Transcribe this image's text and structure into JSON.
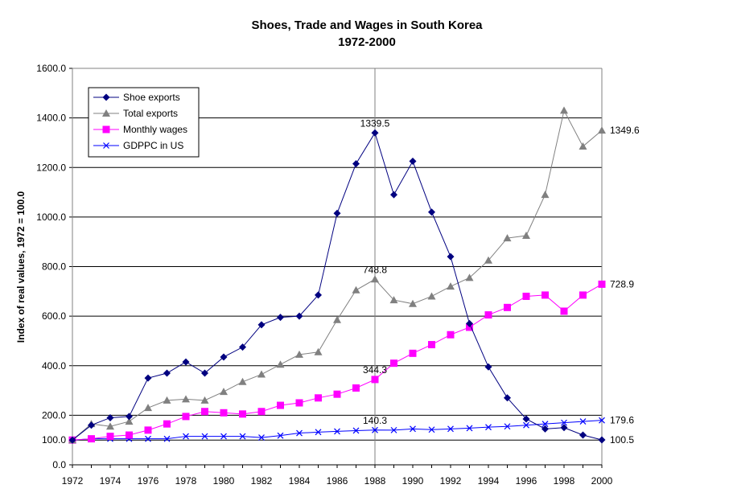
{
  "chart_data": {
    "type": "line",
    "title": "Shoes, Trade and Wages in South Korea",
    "subtitle": "1972-2000",
    "ylabel": "Index of real values, 1972 = 100.0",
    "xlabel": "",
    "ylim": [
      0,
      1600
    ],
    "xlim": [
      1972,
      2000
    ],
    "y_ticks": [
      "0.0",
      "100.0",
      "200.0",
      "400.0",
      "600.0",
      "800.0",
      "1000.0",
      "1200.0",
      "1400.0",
      "1600.0"
    ],
    "x_ticks": [
      "1972",
      "1974",
      "1976",
      "1978",
      "1980",
      "1982",
      "1984",
      "1986",
      "1988",
      "1990",
      "1992",
      "1994",
      "1996",
      "1998",
      "2000"
    ],
    "grid": "horizontal",
    "legend_position": "top-left",
    "x": [
      1972,
      1973,
      1974,
      1975,
      1976,
      1977,
      1978,
      1979,
      1980,
      1981,
      1982,
      1983,
      1984,
      1985,
      1986,
      1987,
      1988,
      1989,
      1990,
      1991,
      1992,
      1993,
      1994,
      1995,
      1996,
      1997,
      1998,
      1999,
      2000
    ],
    "series": [
      {
        "name": "Shoe exports",
        "color": "#000080",
        "marker": "diamond",
        "values": [
          100,
          160,
          190,
          195,
          350,
          370,
          415,
          370,
          435,
          475,
          565,
          595,
          600,
          685,
          1015,
          1215,
          1339.5,
          1090,
          1225,
          1020,
          840,
          570,
          395,
          270,
          185,
          145,
          150,
          120,
          100.5
        ]
      },
      {
        "name": "Total exports",
        "color": "#808080",
        "marker": "triangle",
        "values": [
          100,
          165,
          155,
          175,
          230,
          260,
          265,
          260,
          295,
          335,
          365,
          405,
          445,
          455,
          585,
          705,
          748.8,
          665,
          650,
          680,
          720,
          755,
          825,
          915,
          925,
          1090,
          1430,
          1285,
          1349.6
        ]
      },
      {
        "name": "Monthly wages",
        "color": "#ff00ff",
        "marker": "square",
        "values": [
          100,
          105,
          115,
          120,
          140,
          165,
          195,
          215,
          210,
          205,
          215,
          240,
          250,
          270,
          285,
          310,
          344.3,
          410,
          450,
          485,
          525,
          555,
          605,
          635,
          680,
          685,
          620,
          685,
          728.9
        ]
      },
      {
        "name": "GDPPC in US",
        "color": "#0000ff",
        "marker": "x",
        "values": [
          100,
          105,
          105,
          105,
          105,
          105,
          115,
          115,
          115,
          115,
          110,
          118,
          128,
          132,
          135,
          138,
          140.3,
          140,
          145,
          142,
          145,
          148,
          152,
          155,
          160,
          165,
          170,
          175,
          179.6
        ]
      }
    ],
    "annotations": [
      {
        "text": "1339.5",
        "x": 1988,
        "y": 1339.5,
        "anchor": "above"
      },
      {
        "text": "748.8",
        "x": 1988,
        "y": 748.8,
        "anchor": "above"
      },
      {
        "text": "344.3",
        "x": 1988,
        "y": 344.3,
        "anchor": "above"
      },
      {
        "text": "140.3",
        "x": 1988,
        "y": 140.3,
        "anchor": "above"
      },
      {
        "text": "1349.6",
        "x": 2000,
        "y": 1349.6,
        "anchor": "right"
      },
      {
        "text": "728.9",
        "x": 2000,
        "y": 728.9,
        "anchor": "right"
      },
      {
        "text": "179.6",
        "x": 2000,
        "y": 179.6,
        "anchor": "right"
      },
      {
        "text": "100.5",
        "x": 2000,
        "y": 100.5,
        "anchor": "right"
      }
    ],
    "reference_line_x": 1988
  }
}
